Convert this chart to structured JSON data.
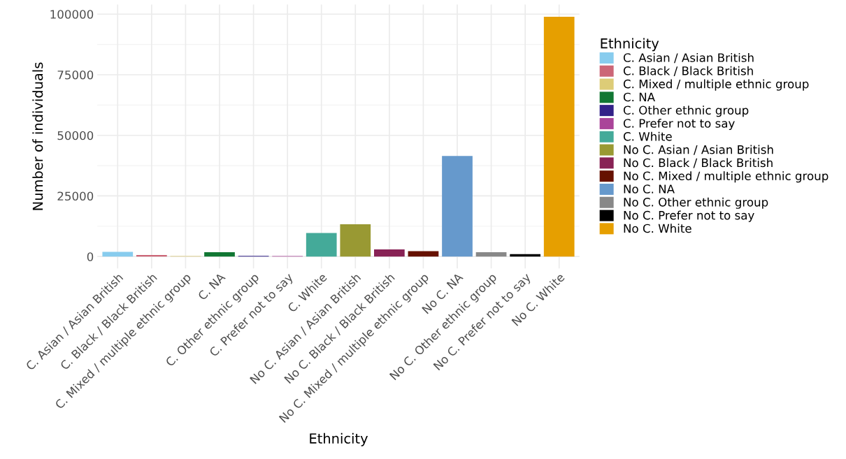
{
  "chart_data": {
    "type": "bar",
    "xlabel": "Ethnicity",
    "ylabel": "Number of individuals",
    "legend_title": "Ethnicity",
    "legend": "right",
    "grid": true,
    "categories": [
      "C. Asian / Asian British",
      "C. Black / Black British",
      "C. Mixed / multiple ethnic group",
      "C. NA",
      "C. Other ethnic group",
      "C. Prefer not to say",
      "C. White",
      "No C. Asian / Asian British",
      "No C. Black / Black British",
      "No C. Mixed / multiple ethnic group",
      "No C. NA",
      "No C. Other ethnic group",
      "No C. Prefer not to say",
      "No C. White"
    ],
    "series": [
      {
        "name": "C. Asian / Asian British",
        "color": "#88ccee",
        "values": [
          1900,
          null,
          null,
          null,
          null,
          null,
          null,
          null,
          null,
          null,
          null,
          null,
          null,
          null
        ]
      },
      {
        "name": "C. Black / Black British",
        "color": "#cc6677",
        "values": [
          null,
          600,
          null,
          null,
          null,
          null,
          null,
          null,
          null,
          null,
          null,
          null,
          null,
          null
        ]
      },
      {
        "name": "C. Mixed / multiple ethnic group",
        "color": "#ddcc77",
        "values": [
          null,
          null,
          200,
          null,
          null,
          null,
          null,
          null,
          null,
          null,
          null,
          null,
          null,
          null
        ]
      },
      {
        "name": "C. NA",
        "color": "#117733",
        "values": [
          null,
          null,
          null,
          1800,
          null,
          null,
          null,
          null,
          null,
          null,
          null,
          null,
          null,
          null
        ]
      },
      {
        "name": "C. Other ethnic group",
        "color": "#332288",
        "values": [
          null,
          null,
          null,
          null,
          300,
          null,
          null,
          null,
          null,
          null,
          null,
          null,
          null,
          null
        ]
      },
      {
        "name": "C. Prefer not to say",
        "color": "#aa4499",
        "values": [
          null,
          null,
          null,
          null,
          null,
          200,
          null,
          null,
          null,
          null,
          null,
          null,
          null,
          null
        ]
      },
      {
        "name": "C. White",
        "color": "#44aa99",
        "values": [
          null,
          null,
          null,
          null,
          null,
          null,
          9700,
          null,
          null,
          null,
          null,
          null,
          null,
          null
        ]
      },
      {
        "name": "No C. Asian / Asian British",
        "color": "#999933",
        "values": [
          null,
          null,
          null,
          null,
          null,
          null,
          null,
          13300,
          null,
          null,
          null,
          null,
          null,
          null
        ]
      },
      {
        "name": "No C. Black / Black British",
        "color": "#882255",
        "values": [
          null,
          null,
          null,
          null,
          null,
          null,
          null,
          null,
          2900,
          null,
          null,
          null,
          null,
          null
        ]
      },
      {
        "name": "No C. Mixed / multiple ethnic group",
        "color": "#661100",
        "values": [
          null,
          null,
          null,
          null,
          null,
          null,
          null,
          null,
          null,
          2200,
          null,
          null,
          null,
          null
        ]
      },
      {
        "name": "No C. NA",
        "color": "#6699cc",
        "values": [
          null,
          null,
          null,
          null,
          null,
          null,
          null,
          null,
          null,
          null,
          41500,
          null,
          null,
          null
        ]
      },
      {
        "name": "No C. Other ethnic group",
        "color": "#888888",
        "values": [
          null,
          null,
          null,
          null,
          null,
          null,
          null,
          null,
          null,
          null,
          null,
          1800,
          null,
          null
        ]
      },
      {
        "name": "No C. Prefer not to say",
        "color": "#000000",
        "values": [
          null,
          null,
          null,
          null,
          null,
          null,
          null,
          null,
          null,
          null,
          null,
          null,
          1000,
          null
        ]
      },
      {
        "name": "No C. White",
        "color": "#e69f00",
        "values": [
          null,
          null,
          null,
          null,
          null,
          null,
          null,
          null,
          null,
          null,
          null,
          null,
          null,
          98900
        ]
      }
    ],
    "ylim": [
      -4950,
      103950
    ],
    "yticks": [
      0,
      25000,
      50000,
      75000,
      100000
    ]
  }
}
